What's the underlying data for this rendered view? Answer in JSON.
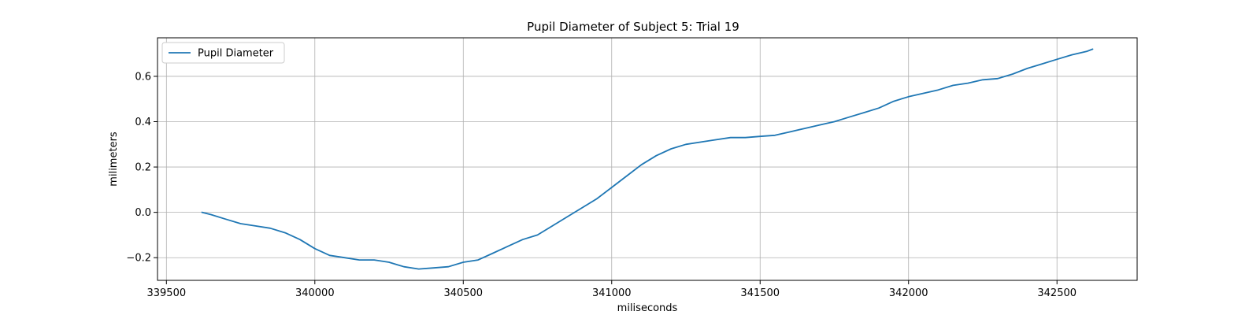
{
  "chart_data": {
    "type": "line",
    "title": "Pupil Diameter of Subject 5: Trial 19",
    "xlabel": "miliseconds",
    "ylabel": "milimeters",
    "xlim": [
      339470,
      342770
    ],
    "ylim": [
      -0.3,
      0.77
    ],
    "xticks": [
      339500,
      340000,
      340500,
      341000,
      341500,
      342000,
      342500
    ],
    "xtick_labels": [
      "339500",
      "340000",
      "340500",
      "341000",
      "341500",
      "342000",
      "342500"
    ],
    "yticks": [
      -0.2,
      0.0,
      0.2,
      0.4,
      0.6
    ],
    "ytick_labels": [
      "−0.2",
      "0.0",
      "0.2",
      "0.4",
      "0.6"
    ],
    "grid": true,
    "legend_position": "top-left",
    "series": [
      {
        "name": "Pupil Diameter",
        "color": "#1f77b4",
        "x": [
          339620,
          339650,
          339700,
          339750,
          339800,
          339850,
          339900,
          339950,
          340000,
          340050,
          340100,
          340150,
          340200,
          340250,
          340300,
          340350,
          340400,
          340450,
          340500,
          340550,
          340600,
          340650,
          340700,
          340750,
          340800,
          340850,
          340900,
          340950,
          341000,
          341050,
          341100,
          341150,
          341200,
          341250,
          341300,
          341350,
          341400,
          341450,
          341500,
          341550,
          341600,
          341650,
          341700,
          341750,
          341800,
          341850,
          341900,
          341950,
          342000,
          342050,
          342100,
          342150,
          342200,
          342250,
          342300,
          342350,
          342400,
          342450,
          342500,
          342550,
          342600,
          342620
        ],
        "y": [
          0.0,
          -0.01,
          -0.03,
          -0.05,
          -0.06,
          -0.07,
          -0.09,
          -0.12,
          -0.16,
          -0.19,
          -0.2,
          -0.21,
          -0.21,
          -0.22,
          -0.24,
          -0.25,
          -0.245,
          -0.24,
          -0.22,
          -0.21,
          -0.18,
          -0.15,
          -0.12,
          -0.1,
          -0.06,
          -0.02,
          0.02,
          0.06,
          0.11,
          0.16,
          0.21,
          0.25,
          0.28,
          0.3,
          0.31,
          0.32,
          0.33,
          0.33,
          0.335,
          0.34,
          0.355,
          0.37,
          0.385,
          0.4,
          0.42,
          0.44,
          0.46,
          0.49,
          0.51,
          0.525,
          0.54,
          0.56,
          0.57,
          0.585,
          0.59,
          0.61,
          0.635,
          0.655,
          0.675,
          0.695,
          0.71,
          0.72
        ]
      }
    ]
  }
}
